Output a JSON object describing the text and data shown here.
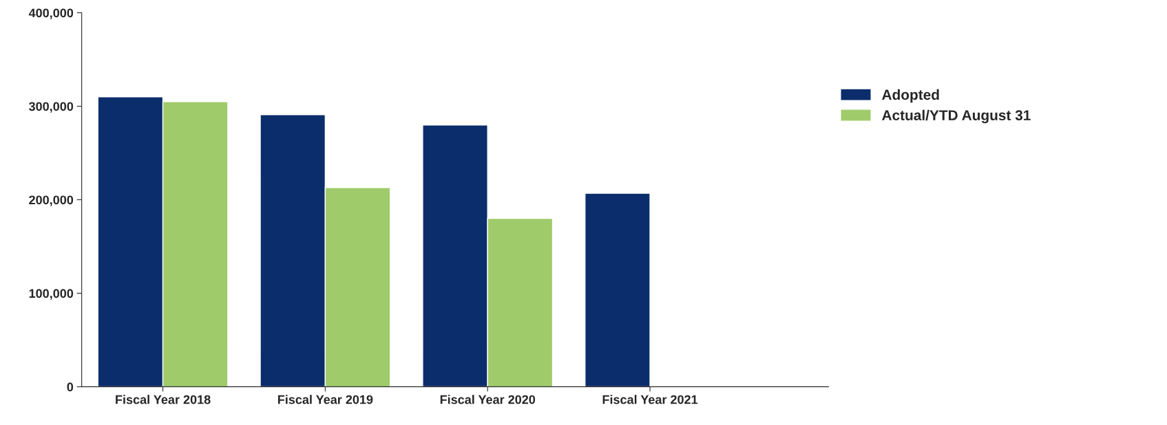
{
  "chart_data": {
    "type": "bar",
    "categories": [
      "Fiscal Year 2018",
      "Fiscal Year 2019",
      "Fiscal Year 2020",
      "Fiscal Year 2021"
    ],
    "series": [
      {
        "name": "Adopted",
        "color": "#0b2d6b",
        "values": [
          310000,
          291000,
          280000,
          207000
        ]
      },
      {
        "name": "Actual/YTD August 31",
        "color": "#9fcb6b",
        "values": [
          305000,
          213000,
          180000,
          null
        ]
      }
    ],
    "ylim": [
      0,
      400000
    ],
    "yticks": [
      {
        "value": 0,
        "label": "0"
      },
      {
        "value": 100000,
        "label": "100,000"
      },
      {
        "value": 200000,
        "label": "200,000"
      },
      {
        "value": 300000,
        "label": "300,000"
      },
      {
        "value": 400000,
        "label": "400,000"
      }
    ],
    "grid": false,
    "legend": "right"
  }
}
